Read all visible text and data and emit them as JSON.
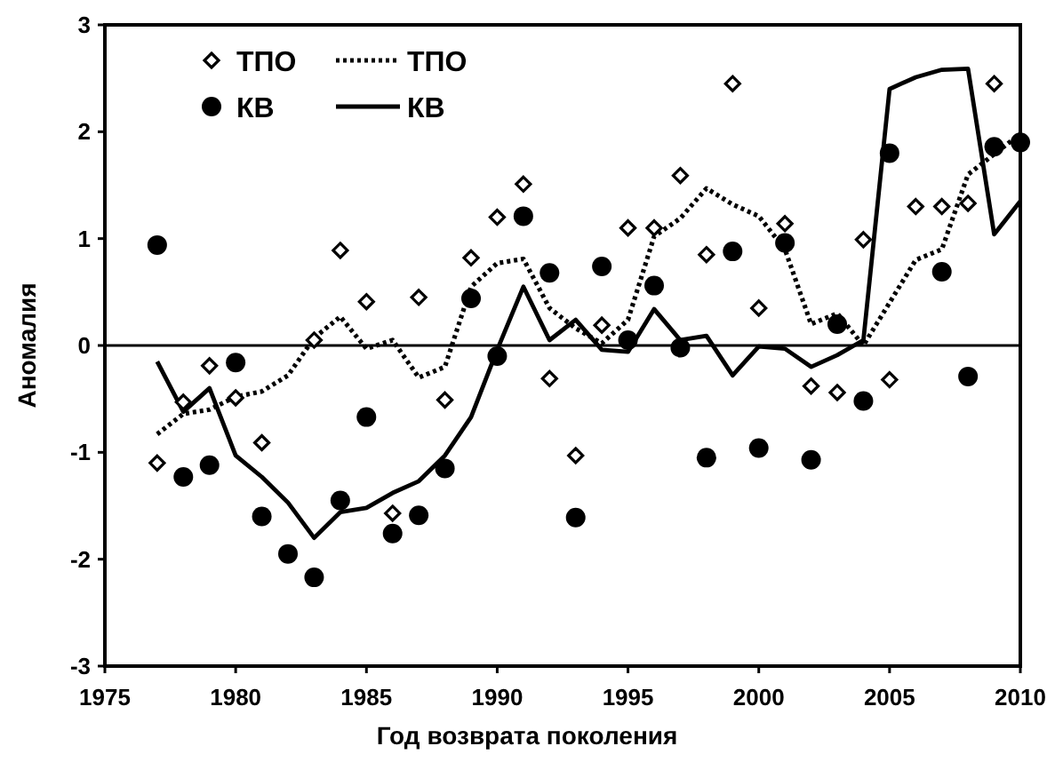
{
  "chart_data": {
    "type": "line",
    "xlabel": "Год возврата поколения",
    "ylabel": "Аномалия",
    "x": [
      1977,
      1978,
      1979,
      1980,
      1981,
      1982,
      1983,
      1984,
      1985,
      1986,
      1987,
      1988,
      1989,
      1990,
      1991,
      1992,
      1993,
      1994,
      1995,
      1996,
      1997,
      1998,
      1999,
      2000,
      2001,
      2002,
      2003,
      2004,
      2005,
      2006,
      2007,
      2008,
      2009,
      2010
    ],
    "series": [
      {
        "name": "ТПО",
        "type": "scatter",
        "marker": "diamond",
        "color": "#000000",
        "values": [
          -1.1,
          -0.53,
          -0.19,
          -0.49,
          -0.91,
          null,
          0.05,
          0.89,
          0.41,
          -1.57,
          0.45,
          -0.51,
          0.82,
          1.2,
          1.51,
          -0.31,
          -1.03,
          0.19,
          1.1,
          1.1,
          1.59,
          0.85,
          2.45,
          0.35,
          1.14,
          -0.38,
          -0.44,
          0.99,
          -0.32,
          1.3,
          1.3,
          1.33,
          2.45,
          null
        ]
      },
      {
        "name": "ТПО",
        "line_style": "dotted",
        "marker": "none",
        "color": "#000000",
        "values": [
          -0.83,
          -0.64,
          -0.6,
          -0.48,
          -0.43,
          -0.28,
          0.07,
          0.27,
          -0.03,
          0.05,
          -0.3,
          -0.2,
          0.55,
          0.77,
          0.81,
          0.35,
          0.16,
          0.02,
          0.24,
          1.02,
          1.19,
          1.47,
          1.32,
          1.21,
          0.9,
          0.2,
          0.3,
          0.0,
          0.4,
          0.8,
          0.9,
          1.6,
          1.79,
          1.98
        ]
      },
      {
        "name": "КВ",
        "type": "scatter",
        "marker": "circle",
        "color": "#000000",
        "values": [
          0.94,
          -1.23,
          -1.12,
          -0.16,
          -1.6,
          -1.95,
          -2.17,
          -1.45,
          -0.67,
          -1.76,
          -1.59,
          -1.15,
          0.44,
          -0.1,
          1.21,
          0.68,
          -1.61,
          0.74,
          0.05,
          0.56,
          -0.02,
          -1.05,
          0.88,
          -0.96,
          0.96,
          -1.07,
          0.2,
          -0.52,
          1.8,
          null,
          0.69,
          -0.29,
          1.86,
          1.9
        ]
      },
      {
        "name": "КВ",
        "line_style": "solid",
        "marker": "none",
        "color": "#000000",
        "values": [
          -0.15,
          -0.62,
          -0.4,
          -1.03,
          -1.23,
          -1.47,
          -1.8,
          -1.56,
          -1.52,
          -1.38,
          -1.27,
          -1.03,
          -0.67,
          -0.04,
          0.55,
          0.05,
          0.24,
          -0.04,
          -0.06,
          0.34,
          0.05,
          0.09,
          -0.28,
          -0.01,
          -0.03,
          -0.2,
          -0.09,
          0.05,
          2.4,
          2.51,
          2.58,
          2.59,
          1.04,
          1.35
        ]
      }
    ],
    "xlim": [
      1975,
      2010
    ],
    "xticks": [
      1975,
      1980,
      1985,
      1990,
      1995,
      2000,
      2005,
      2010
    ],
    "ylim": [
      -3,
      3
    ],
    "yticks": [
      -3,
      -2,
      -1,
      0,
      1,
      2,
      3
    ],
    "ref_lines": [
      {
        "axis": "y",
        "value": 0,
        "color": "#000000"
      }
    ],
    "grid": false,
    "legend": "top left"
  }
}
